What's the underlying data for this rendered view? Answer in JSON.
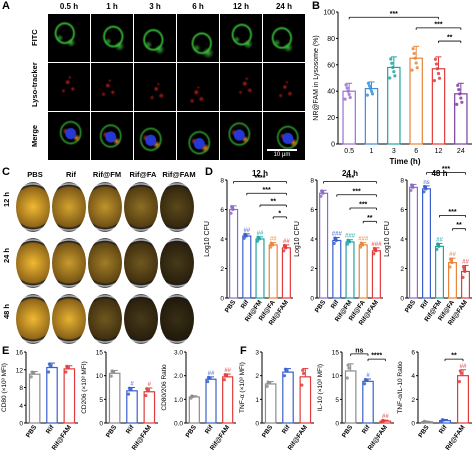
{
  "panels": {
    "a": "A",
    "b": "B",
    "c": "C",
    "d": "D",
    "e": "E",
    "f": "F"
  },
  "panel_a": {
    "times": [
      "0.5 h",
      "1 h",
      "3 h",
      "6 h",
      "12 h",
      "24 h"
    ],
    "rows": [
      "FITC",
      "Lyso-tracker",
      "Merge"
    ],
    "scale_bar": "10 μm"
  },
  "panel_c": {
    "columns": [
      "PBS",
      "Rif",
      "Rif@FM",
      "Rif@FA",
      "Rif@FAM"
    ],
    "rows": [
      "12 h",
      "24 h",
      "48 h"
    ]
  },
  "colors": {
    "gray": "#8c8c8c",
    "purple": "#7b3fa0",
    "blue": "#3a5fcd",
    "teal": "#21a3a3",
    "orange": "#e8853b",
    "red": "#e23b3b",
    "violet": "#8e6bc6"
  },
  "chart_data": [
    {
      "id": "B",
      "type": "bar",
      "categories": [
        "0.5",
        "1",
        "3",
        "6",
        "12",
        "24"
      ],
      "values": [
        40,
        42,
        58,
        65,
        57,
        38
      ],
      "errors": [
        6,
        5,
        8,
        9,
        9,
        8
      ],
      "xlabel": "Time (h)",
      "ylabel": "NR@FAM in Lysosome (%)",
      "ylim": [
        0,
        100
      ],
      "yticks": [
        "0",
        "20",
        "40",
        "60",
        "80",
        "100"
      ],
      "colors": [
        "#9b6fd0",
        "#3a8fd9",
        "#21a3a3",
        "#e8853b",
        "#e23b3b",
        "#7b3fa0"
      ],
      "annotations": [
        "***",
        "***",
        "**"
      ]
    },
    {
      "id": "D-12h",
      "type": "bar",
      "title": "12 h",
      "categories": [
        "PBS",
        "Rif",
        "Rif@FM",
        "Rif@FA",
        "Rif@FAM"
      ],
      "values": [
        6.0,
        4.2,
        4.0,
        3.6,
        3.4
      ],
      "errors": [
        0.25,
        0.15,
        0.15,
        0.15,
        0.2
      ],
      "ylabel": "Log10 CFU",
      "ylim": [
        0,
        8
      ],
      "yticks": [
        "0",
        "2",
        "4",
        "6",
        "8"
      ],
      "labels": [
        "",
        "##",
        "##",
        "##",
        "##"
      ],
      "annotations": [
        "****",
        "***",
        "**",
        "*"
      ]
    },
    {
      "id": "D-24h",
      "type": "bar",
      "title": "24 h",
      "categories": [
        "PBS",
        "Rif",
        "Rif@FM",
        "Rif@FA",
        "Rif@FAM"
      ],
      "values": [
        7.1,
        3.9,
        3.8,
        3.6,
        3.2
      ],
      "errors": [
        0.2,
        0.2,
        0.15,
        0.15,
        0.2
      ],
      "ylabel": "Log10 CFU",
      "ylim": [
        0,
        8
      ],
      "yticks": [
        "0",
        "2",
        "4",
        "6",
        "8"
      ],
      "labels": [
        "",
        "###",
        "###",
        "###",
        "###"
      ],
      "annotations": [
        "***",
        "***",
        "***",
        "**"
      ]
    },
    {
      "id": "D-48h",
      "type": "bar",
      "title": "48 h",
      "categories": [
        "PBS",
        "Rif",
        "Rif@FM",
        "Rif@FA",
        "Rif@FAM"
      ],
      "values": [
        7.5,
        7.4,
        3.5,
        2.4,
        1.8
      ],
      "errors": [
        0.2,
        0.2,
        0.2,
        0.3,
        0.4
      ],
      "ylabel": "Log10 CFU",
      "ylim": [
        0,
        8
      ],
      "yticks": [
        "0",
        "2",
        "4",
        "6",
        "8"
      ],
      "labels": [
        "",
        "ns",
        "##",
        "##",
        "##"
      ],
      "annotations": [
        "***",
        "***",
        "**"
      ]
    },
    {
      "id": "E-CD80",
      "type": "bar",
      "categories": [
        "PBS",
        "Rif",
        "Rif@FAM"
      ],
      "values": [
        11,
        12.5,
        12.2
      ],
      "errors": [
        0.6,
        1.0,
        0.7
      ],
      "ylabel": "CD80 (×10³ MFI)",
      "ylim": [
        0,
        16
      ],
      "yticks": [
        "0",
        "4",
        "8",
        "12",
        "16"
      ],
      "labels": [
        "",
        "",
        ""
      ],
      "annotations": []
    },
    {
      "id": "E-CD206",
      "type": "bar",
      "categories": [
        "PBS",
        "Rif",
        "Rif@FAM"
      ],
      "values": [
        10.5,
        6.8,
        6.6
      ],
      "errors": [
        0.6,
        0.7,
        0.8
      ],
      "ylabel": "CD206 (×10³ MFI)",
      "ylim": [
        0,
        15
      ],
      "yticks": [
        "0",
        "5",
        "10",
        "15"
      ],
      "labels": [
        "",
        "#",
        "#"
      ],
      "annotations": []
    },
    {
      "id": "E-ratio",
      "type": "bar",
      "categories": [
        "PBS",
        "Rif",
        "Rif@FAM"
      ],
      "values": [
        1.1,
        1.85,
        1.95
      ],
      "errors": [
        0.05,
        0.1,
        0.12
      ],
      "ylabel": "CD80/206 Ratio",
      "ylim": [
        0.0,
        3.0
      ],
      "yticks": [
        "0.0",
        "1.0",
        "2.0",
        "3.0"
      ],
      "labels": [
        "",
        "##",
        "##"
      ],
      "annotations": []
    },
    {
      "id": "F-TNF",
      "type": "bar",
      "categories": [
        "PBS",
        "Rif",
        "Rif@FAM"
      ],
      "values": [
        1.65,
        2.15,
        1.95
      ],
      "errors": [
        0.1,
        0.15,
        0.35
      ],
      "ylabel": "TNF-α (×10³ MFI)",
      "ylim": [
        0,
        3
      ],
      "yticks": [
        "0",
        "1",
        "2",
        "3"
      ],
      "labels": [
        "",
        "",
        ""
      ],
      "annotations": []
    },
    {
      "id": "F-IL10",
      "type": "bar",
      "categories": [
        "PBS",
        "Rif",
        "Rif@FAM"
      ],
      "values": [
        11,
        8.8,
        0.4
      ],
      "errors": [
        1.5,
        0.5,
        0.2
      ],
      "ylabel": "IL-10 (×10³ MFI)",
      "ylim": [
        0,
        15
      ],
      "yticks": [
        "0",
        "5",
        "10",
        "15"
      ],
      "labels": [
        "",
        "#",
        "##"
      ],
      "annotations": [
        "****",
        "ns"
      ]
    },
    {
      "id": "F-ratio",
      "type": "bar",
      "categories": [
        "PBS",
        "Rif",
        "Rif@FAM"
      ],
      "values": [
        0.1,
        0.2,
        4.0
      ],
      "errors": [
        0.05,
        0.1,
        0.5
      ],
      "ylabel": "TNF-α/IL-10 Ratio",
      "ylim": [
        0,
        6
      ],
      "yticks": [
        "0",
        "2",
        "4",
        "6"
      ],
      "labels": [
        "",
        "",
        "##"
      ],
      "annotations": [
        "**"
      ]
    }
  ]
}
